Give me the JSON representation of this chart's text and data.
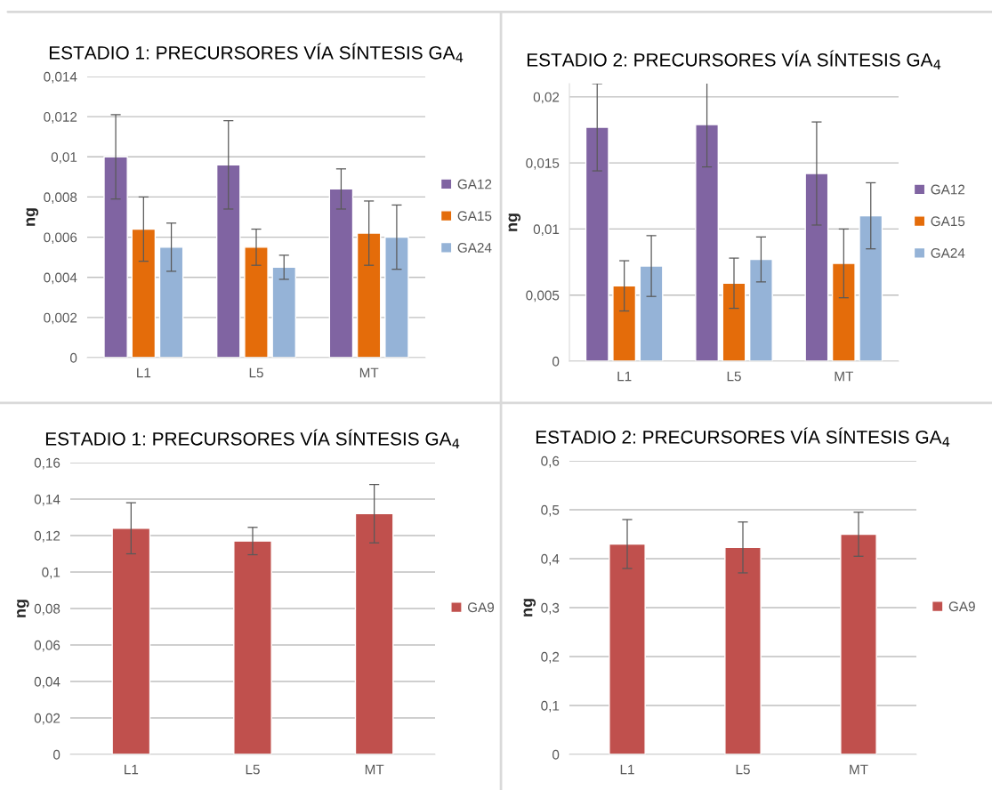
{
  "chart_data": [
    {
      "type": "bar",
      "title": "ESTADIO 1: PRECURSORES VÍA SÍNTESIS GA$_{4}$",
      "ylabel": "ng",
      "categories": [
        "L1",
        "L5",
        "MT"
      ],
      "series": [
        {
          "name": "GA12",
          "color": "#8064a2",
          "values": [
            0.01,
            0.0096,
            0.0084
          ],
          "errors": [
            0.0021,
            0.0022,
            0.001
          ]
        },
        {
          "name": "GA15",
          "color": "#e46c0a",
          "values": [
            0.0064,
            0.0055,
            0.0062
          ],
          "errors": [
            0.0016,
            0.0009,
            0.0016
          ]
        },
        {
          "name": "GA24",
          "color": "#95b3d7",
          "values": [
            0.0055,
            0.0045,
            0.006
          ],
          "errors": [
            0.0012,
            0.0006,
            0.0016
          ]
        }
      ],
      "ylim": [
        0,
        0.014
      ],
      "yticks": [
        {
          "value": 0,
          "label": "0"
        },
        {
          "value": 0.002,
          "label": "0,002"
        },
        {
          "value": 0.004,
          "label": "0,004"
        },
        {
          "value": 0.006,
          "label": "0,006"
        },
        {
          "value": 0.008,
          "label": "0,008"
        },
        {
          "value": 0.01,
          "label": "0,01"
        },
        {
          "value": 0.012,
          "label": "0,012"
        },
        {
          "value": 0.014,
          "label": "0,014"
        }
      ],
      "grid": "y",
      "legend": "right"
    },
    {
      "type": "bar",
      "title": "ESTADIO 2: PRECURSORES VÍA SÍNTESIS GA$_{4}$",
      "ylabel": "ng",
      "categories": [
        "L1",
        "L5",
        "MT"
      ],
      "series": [
        {
          "name": "GA12",
          "color": "#8064a2",
          "values": [
            0.0177,
            0.0179,
            0.0142
          ],
          "errors": [
            0.0033,
            0.0032,
            0.0039
          ]
        },
        {
          "name": "GA15",
          "color": "#e46c0a",
          "values": [
            0.0057,
            0.0059,
            0.0074
          ],
          "errors": [
            0.0019,
            0.0019,
            0.0026
          ]
        },
        {
          "name": "GA24",
          "color": "#95b3d7",
          "values": [
            0.0072,
            0.0077,
            0.011
          ],
          "errors": [
            0.0023,
            0.0017,
            0.0025
          ]
        }
      ],
      "ylim": [
        0,
        0.021
      ],
      "yticks": [
        {
          "value": 0,
          "label": "0"
        },
        {
          "value": 0.005,
          "label": "0,005"
        },
        {
          "value": 0.01,
          "label": "0,01"
        },
        {
          "value": 0.015,
          "label": "0,015"
        },
        {
          "value": 0.02,
          "label": "0,02"
        }
      ],
      "grid": "y",
      "legend": "right"
    },
    {
      "type": "bar",
      "title": "ESTADIO 1: PRECURSORES VÍA SÍNTESIS GA$_{4}$",
      "ylabel": "ng",
      "categories": [
        "L1",
        "L5",
        "MT"
      ],
      "series": [
        {
          "name": "GA9",
          "color": "#c0504d",
          "values": [
            0.124,
            0.117,
            0.132
          ],
          "errors": [
            0.014,
            0.0075,
            0.016
          ]
        }
      ],
      "ylim": [
        0,
        0.16
      ],
      "yticks": [
        {
          "value": 0,
          "label": "0"
        },
        {
          "value": 0.02,
          "label": "0,02"
        },
        {
          "value": 0.04,
          "label": "0,04"
        },
        {
          "value": 0.06,
          "label": "0,06"
        },
        {
          "value": 0.08,
          "label": "0,08"
        },
        {
          "value": 0.1,
          "label": "0,1"
        },
        {
          "value": 0.12,
          "label": "0,12"
        },
        {
          "value": 0.14,
          "label": "0,14"
        },
        {
          "value": 0.16,
          "label": "0,16"
        }
      ],
      "grid": "y",
      "legend": "right"
    },
    {
      "type": "bar",
      "title": "ESTADIO 2: PRECURSORES VÍA SÍNTESIS GA$_{4}$",
      "ylabel": "ng",
      "categories": [
        "L1",
        "L5",
        "MT"
      ],
      "series": [
        {
          "name": "GA9",
          "color": "#c0504d",
          "values": [
            0.43,
            0.423,
            0.45
          ],
          "errors": [
            0.05,
            0.052,
            0.045
          ]
        }
      ],
      "ylim": [
        0,
        0.6
      ],
      "yticks": [
        {
          "value": 0,
          "label": "0"
        },
        {
          "value": 0.1,
          "label": "0,1"
        },
        {
          "value": 0.2,
          "label": "0,2"
        },
        {
          "value": 0.3,
          "label": "0,3"
        },
        {
          "value": 0.4,
          "label": "0,4"
        },
        {
          "value": 0.5,
          "label": "0,5"
        },
        {
          "value": 0.6,
          "label": "0,6"
        }
      ],
      "grid": "y",
      "legend": "right"
    }
  ]
}
